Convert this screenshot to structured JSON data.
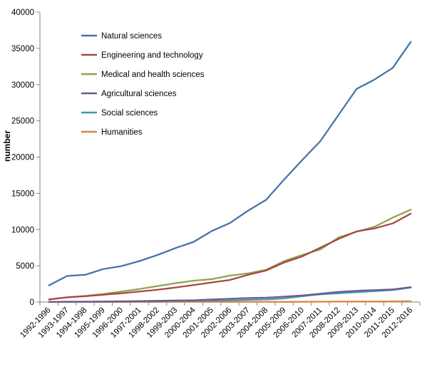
{
  "chart_data": {
    "type": "line",
    "title": "",
    "xlabel": "",
    "ylabel": "number",
    "ylim": [
      0,
      40000
    ],
    "yticks": [
      0,
      5000,
      10000,
      15000,
      20000,
      25000,
      30000,
      35000,
      40000
    ],
    "grid": false,
    "legend_position": "top-left",
    "categories": [
      "1992-1996",
      "1993-1997",
      "1994-1998",
      "1995-1999",
      "1996-2000",
      "1997-2001",
      "1998-2002",
      "1999-2003",
      "2000-2004",
      "2001-2005",
      "2002-2006",
      "2003-2007",
      "2004-2008",
      "2005-2009",
      "2006-2010",
      "2007-2011",
      "2008-2012",
      "2009-2013",
      "2010-2014",
      "2011-2015",
      "2012-2016"
    ],
    "series": [
      {
        "name": "Natural sciences",
        "color": "#4572a7",
        "values": [
          2300,
          3600,
          3750,
          4550,
          4950,
          5650,
          6500,
          7450,
          8300,
          9800,
          10900,
          12600,
          14100,
          16900,
          19600,
          22200,
          25800,
          29400,
          30700,
          32300,
          35900
        ]
      },
      {
        "name": "Engineering and technology",
        "color": "#aa4643",
        "values": [
          350,
          650,
          800,
          1000,
          1200,
          1450,
          1700,
          2000,
          2350,
          2700,
          3050,
          3750,
          4350,
          5450,
          6300,
          7500,
          8700,
          9750,
          10150,
          10850,
          12200
        ]
      },
      {
        "name": "Medical and health sciences",
        "color": "#89a54e",
        "values": [
          350,
          650,
          850,
          1100,
          1450,
          1800,
          2200,
          2600,
          2950,
          3150,
          3650,
          3950,
          4450,
          5650,
          6500,
          7250,
          8900,
          9700,
          10400,
          11650,
          12750
        ]
      },
      {
        "name": "Agricultural sciences",
        "color": "#71588f",
        "values": [
          30,
          50,
          60,
          80,
          100,
          140,
          180,
          220,
          250,
          350,
          450,
          550,
          600,
          750,
          900,
          1150,
          1400,
          1550,
          1650,
          1750,
          2050
        ]
      },
      {
        "name": "Social sciences",
        "color": "#4198af",
        "values": [
          20,
          30,
          40,
          50,
          70,
          90,
          110,
          140,
          170,
          200,
          230,
          300,
          350,
          500,
          800,
          1050,
          1200,
          1350,
          1500,
          1650,
          2000
        ]
      },
      {
        "name": "Humanities",
        "color": "#db843d",
        "values": [
          0,
          0,
          0,
          5,
          5,
          10,
          10,
          15,
          15,
          20,
          20,
          25,
          25,
          30,
          40,
          50,
          60,
          70,
          80,
          90,
          110
        ]
      }
    ]
  }
}
